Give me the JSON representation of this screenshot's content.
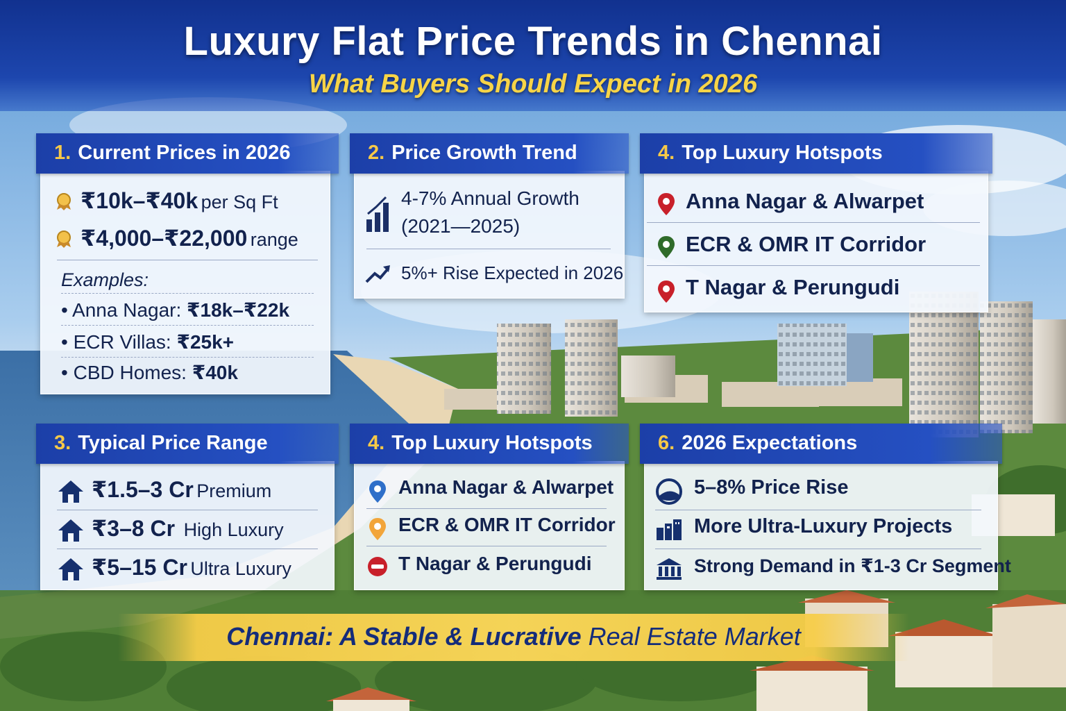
{
  "header": {
    "title": "Luxury Flat Price Trends in Chennai",
    "subtitle": "What Buyers Should Expect in 2026"
  },
  "current_prices": {
    "number": "1.",
    "heading": "Current Prices in 2026",
    "line1_value": "₹10k–₹40k",
    "line1_unit": "per Sq Ft",
    "line2_value": "₹4,000–₹22,000",
    "line2_unit": "range",
    "examples_label": "Examples:",
    "examples": [
      {
        "label": "Anna Nagar:",
        "value": "₹18k–₹22k"
      },
      {
        "label": "ECR Villas:",
        "value": "₹25k+"
      },
      {
        "label": "CBD Homes:",
        "value": "₹40k"
      }
    ]
  },
  "growth_trend": {
    "number": "2.",
    "heading": "Price Growth Trend",
    "line1": "4-7% Annual Growth",
    "line2": "(2021—2025)",
    "line3": "5%+ Rise Expected in 2026"
  },
  "hotspots_top": {
    "number": "4.",
    "heading": "Top Luxury Hotspots",
    "items": [
      "Anna Nagar & Alwarpet",
      "ECR & OMR IT Corridor",
      "T Nagar & Perungudi"
    ]
  },
  "price_range": {
    "number": "3.",
    "heading": "Typical Price Range",
    "items": [
      {
        "value": "₹1.5–3 Cr",
        "label": "Premium"
      },
      {
        "value": "₹3–8 Cr",
        "label": "High Luxury"
      },
      {
        "value": "₹5–15 Cr",
        "label": "Ultra Luxury"
      }
    ]
  },
  "hotspots_bottom": {
    "number": "4.",
    "heading": "Top Luxury Hotspots",
    "items": [
      "Anna Nagar & Alwarpet",
      "ECR & OMR IT Corridor",
      "T Nagar & Perungudi"
    ]
  },
  "expectations": {
    "number": "6.",
    "heading": "2026 Expectations",
    "items": [
      "5–8% Price Rise",
      "More Ultra-Luxury Projects",
      "Strong Demand in ₹1-3 Cr Segment"
    ]
  },
  "footer": {
    "bold_part": "Chennai: A Stable & Lucrative",
    "plain_part": "Real Estate Market"
  },
  "colors": {
    "header_blue": "#1c3fa8",
    "accent_gold": "#f7c948",
    "text_navy": "#12224d",
    "pin_red": "#c8202a",
    "pin_green": "#2f6b2a",
    "pin_blue": "#2f6fc9",
    "pin_orange": "#f2a53a"
  }
}
